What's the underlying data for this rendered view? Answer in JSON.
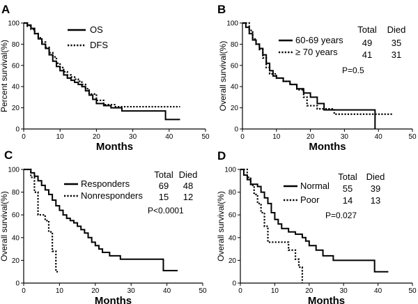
{
  "chart_data": [
    {
      "type": "line",
      "panel": "A",
      "xlabel": "Months",
      "ylabel": "Percent survival(%)",
      "xlim": [
        0,
        50
      ],
      "ylim": [
        0,
        100
      ],
      "xticks": [
        0,
        10,
        20,
        30,
        40,
        50
      ],
      "yticks": [
        0,
        20,
        40,
        60,
        80,
        100
      ],
      "legend_position": "top-right",
      "series": [
        {
          "name": "OS",
          "style": "solid",
          "x": [
            0,
            1,
            2,
            3,
            4,
            5,
            6,
            7,
            8,
            9,
            10,
            11,
            12,
            13,
            14,
            15,
            16,
            17,
            18,
            19,
            20,
            22,
            24,
            27,
            39,
            43
          ],
          "y": [
            100,
            98,
            95,
            90,
            85,
            80,
            76,
            70,
            64,
            59,
            55,
            51,
            48,
            46,
            44,
            42,
            40,
            36,
            32,
            28,
            24,
            22,
            20,
            17,
            9,
            9
          ]
        },
        {
          "name": "DFS",
          "style": "dotted",
          "x": [
            0,
            1,
            2,
            3,
            4,
            5,
            6,
            7,
            8,
            9,
            10,
            11,
            12,
            13,
            14,
            15,
            16,
            17,
            18,
            20,
            22,
            25,
            28,
            43
          ],
          "y": [
            100,
            97,
            94,
            90,
            86,
            82,
            77,
            72,
            68,
            62,
            58,
            54,
            51,
            49,
            47,
            45,
            42,
            38,
            33,
            27,
            23,
            21,
            21,
            21
          ]
        }
      ]
    },
    {
      "type": "line",
      "panel": "B",
      "xlabel": "Months",
      "ylabel": "Overall survival(%)",
      "xlim": [
        0,
        50
      ],
      "ylim": [
        0,
        100
      ],
      "xticks": [
        0,
        10,
        20,
        30,
        40,
        50
      ],
      "yticks": [
        0,
        20,
        40,
        60,
        80,
        100
      ],
      "legend_position": "top-right",
      "table": {
        "headers": [
          "Total",
          "Died"
        ],
        "rows": [
          [
            "49",
            "35"
          ],
          [
            "41",
            "31"
          ]
        ]
      },
      "p_value": "P=0.5",
      "series": [
        {
          "name": "60-69 years",
          "style": "solid",
          "x": [
            0,
            1,
            2,
            3,
            4,
            5,
            6,
            7,
            8,
            9,
            10,
            12,
            14,
            16,
            18,
            20,
            22,
            24,
            39
          ],
          "y": [
            100,
            96,
            90,
            84,
            80,
            76,
            70,
            62,
            55,
            50,
            48,
            45,
            42,
            38,
            34,
            30,
            24,
            18,
            0
          ]
        },
        {
          "name": "≥ 70 years",
          "style": "dotted",
          "x": [
            0,
            2,
            3,
            4,
            5,
            6,
            7,
            8,
            10,
            12,
            14,
            16,
            18,
            19,
            22,
            27,
            44
          ],
          "y": [
            100,
            93,
            85,
            80,
            75,
            67,
            58,
            52,
            48,
            45,
            42,
            37,
            30,
            22,
            19,
            14,
            14
          ]
        }
      ]
    },
    {
      "type": "line",
      "panel": "C",
      "xlabel": "Months",
      "ylabel": "Overall survival(%)",
      "xlim": [
        0,
        50
      ],
      "ylim": [
        0,
        100
      ],
      "xticks": [
        0,
        10,
        20,
        30,
        40,
        50
      ],
      "yticks": [
        0,
        20,
        40,
        60,
        80,
        100
      ],
      "legend_position": "top-right",
      "table": {
        "headers": [
          "Total",
          "Died"
        ],
        "rows": [
          [
            "69",
            "48"
          ],
          [
            "15",
            "12"
          ]
        ]
      },
      "p_value": "P<0.0001",
      "series": [
        {
          "name": "Responders",
          "style": "solid",
          "x": [
            0,
            2,
            3,
            4,
            5,
            6,
            7,
            8,
            9,
            10,
            11,
            12,
            13,
            14,
            15,
            16,
            17,
            18,
            19,
            20,
            21,
            22,
            24,
            27,
            39,
            43
          ],
          "y": [
            100,
            97,
            94,
            90,
            86,
            82,
            78,
            73,
            68,
            64,
            60,
            57,
            55,
            53,
            50,
            47,
            44,
            40,
            36,
            33,
            30,
            27,
            24,
            21,
            11,
            11
          ]
        },
        {
          "name": "Nonresponders",
          "style": "dotted",
          "x": [
            0,
            2,
            3,
            4,
            5,
            6,
            7,
            8,
            9,
            10
          ],
          "y": [
            100,
            93,
            80,
            60,
            60,
            55,
            45,
            28,
            10,
            10
          ]
        }
      ]
    },
    {
      "type": "line",
      "panel": "D",
      "xlabel": "Months",
      "ylabel": "Overall survival(%)",
      "xlim": [
        0,
        50
      ],
      "ylim": [
        0,
        100
      ],
      "xticks": [
        0,
        10,
        20,
        30,
        40,
        50
      ],
      "yticks": [
        0,
        20,
        40,
        60,
        80,
        100
      ],
      "legend_position": "top-right",
      "table": {
        "headers": [
          "Total",
          "Died"
        ],
        "rows": [
          [
            "55",
            "39"
          ],
          [
            "14",
            "13"
          ]
        ]
      },
      "p_value": "P=0.027",
      "series": [
        {
          "name": "Normal",
          "style": "solid",
          "x": [
            0,
            1,
            2,
            3,
            5,
            6,
            7,
            8,
            9,
            10,
            11,
            12,
            14,
            16,
            18,
            19,
            20,
            22,
            24,
            27,
            39,
            43
          ],
          "y": [
            100,
            95,
            91,
            87,
            85,
            80,
            75,
            70,
            62,
            56,
            52,
            48,
            45,
            43,
            40,
            37,
            33,
            29,
            24,
            20,
            10,
            10
          ]
        },
        {
          "name": "Poor",
          "style": "dotted",
          "x": [
            0,
            1,
            2,
            3,
            4,
            5,
            6,
            7,
            8,
            9,
            12,
            14,
            16,
            17,
            18
          ],
          "y": [
            100,
            100,
            93,
            86,
            78,
            70,
            62,
            50,
            36,
            36,
            36,
            29,
            21,
            14,
            0
          ]
        }
      ]
    }
  ]
}
